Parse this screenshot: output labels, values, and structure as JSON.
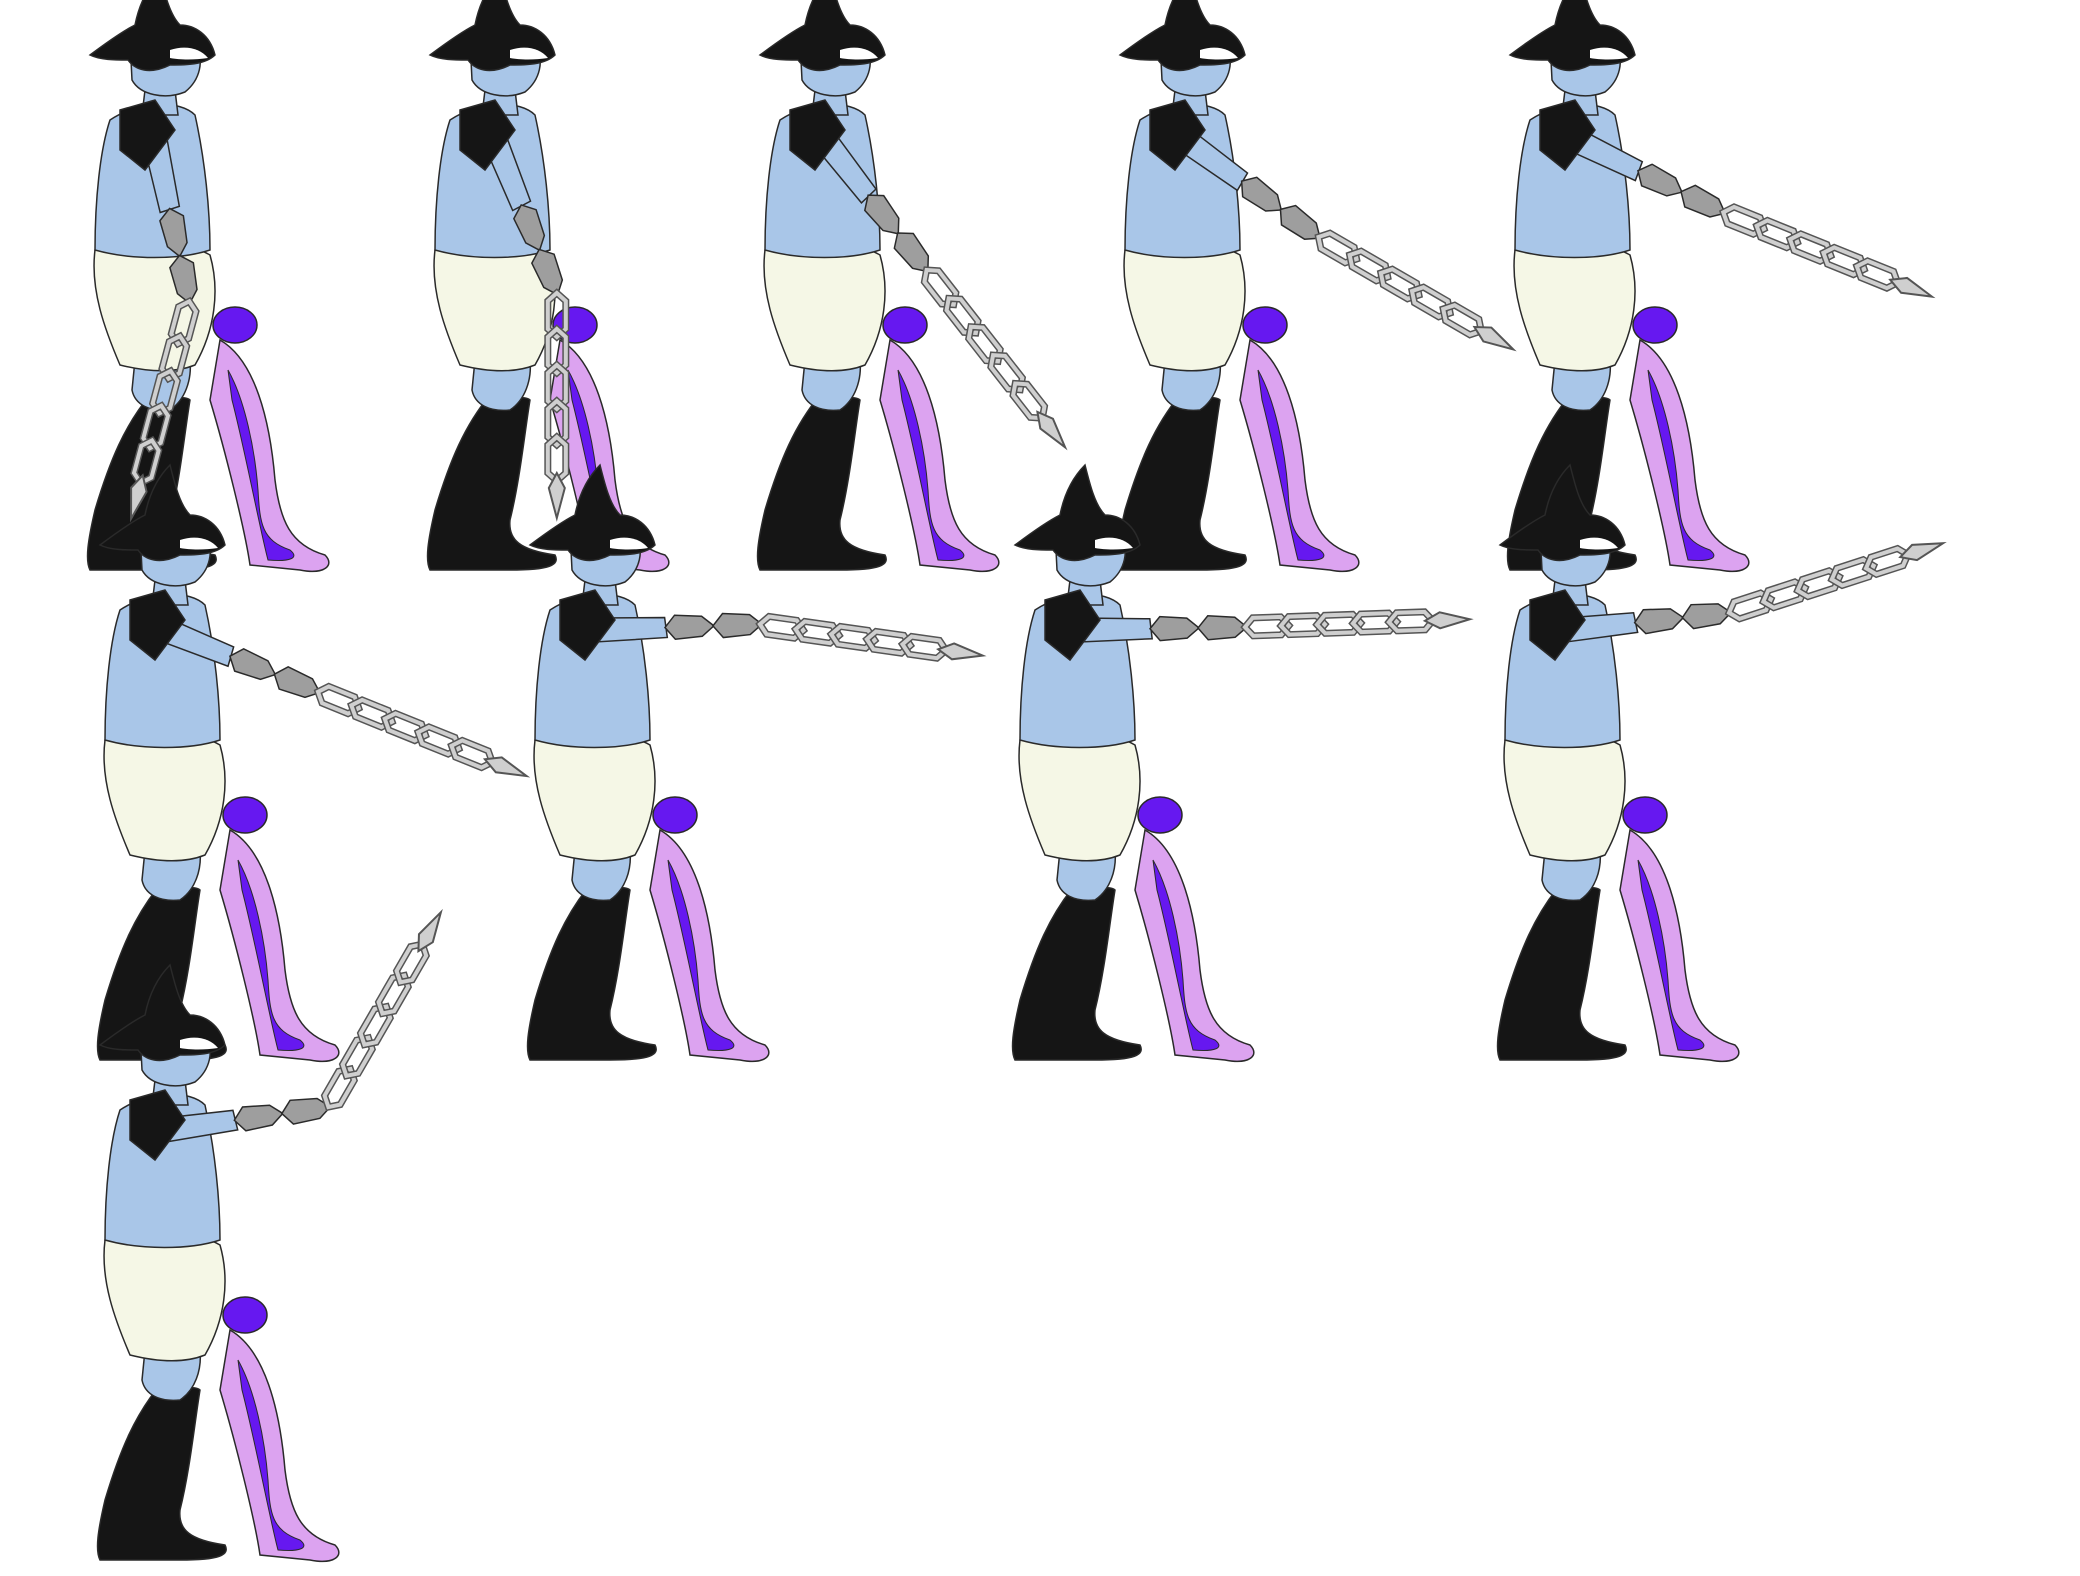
{
  "sheet": {
    "background": "#ffffff",
    "frames": [
      {
        "id": 1,
        "chain_angle": 105,
        "arm_angle": 78
      },
      {
        "id": 2,
        "chain_angle": 90,
        "arm_angle": 68
      },
      {
        "id": 3,
        "chain_angle": 52,
        "arm_angle": 52
      },
      {
        "id": 4,
        "chain_angle": 30,
        "arm_angle": 36
      },
      {
        "id": 5,
        "chain_angle": 22,
        "arm_angle": 26
      },
      {
        "id": 6,
        "chain_angle": 22,
        "arm_angle": 22
      },
      {
        "id": 7,
        "chain_angle": 8,
        "arm_angle": -2
      },
      {
        "id": 8,
        "chain_angle": -2,
        "arm_angle": -1
      },
      {
        "id": 9,
        "chain_angle": -18,
        "arm_angle": -6
      },
      {
        "id": 10,
        "chain_angle": -60,
        "arm_angle": -8
      }
    ]
  },
  "palette": {
    "skin": "#a9c6e8",
    "armor": "#151515",
    "shorts": "#f5f7e6",
    "leg_glow": "#dca3f0",
    "leg_core": "#6618f0",
    "blade": "#9e9e9e",
    "chain": "#cfcfcf",
    "outline": "#2a2a2a"
  },
  "icons": {
    "character": "chain-whip-fighter-sprite",
    "weapon": "chain-arm-icon"
  }
}
